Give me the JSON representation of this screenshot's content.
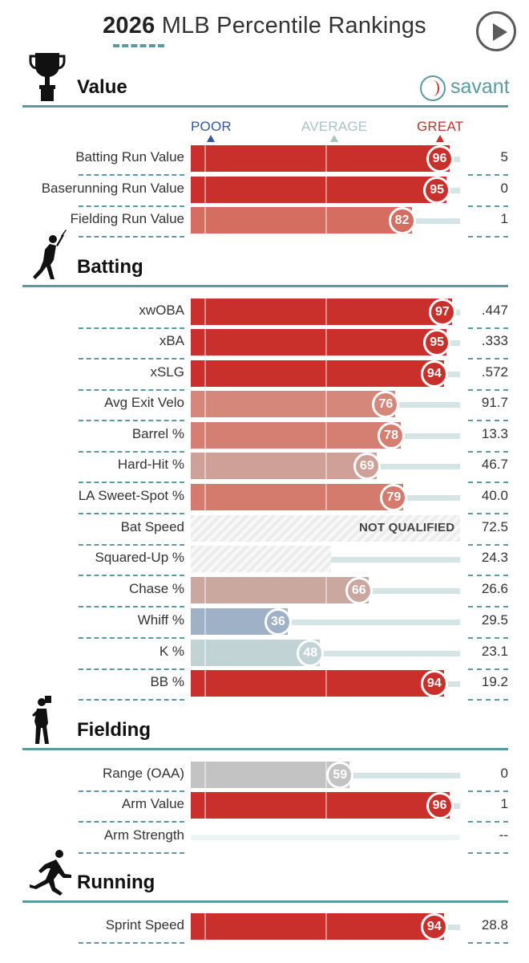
{
  "header": {
    "year": "2026",
    "title_rest": "MLB Percentile Rankings",
    "brand": "savant"
  },
  "axis": {
    "poor": "POOR",
    "average": "AVERAGE",
    "great": "GREAT"
  },
  "colors": {
    "accent": "#5a9aa0",
    "great": "#c9302c",
    "poor": "#3457a0"
  },
  "sections": [
    {
      "title": "Value",
      "icon": "trophy-icon",
      "rows": [
        {
          "label": "Batting Run Value",
          "percentile": 96,
          "value": "5",
          "color": "#c9302c"
        },
        {
          "label": "Baserunning Run Value",
          "percentile": 95,
          "value": "0",
          "color": "#c9302c"
        },
        {
          "label": "Fielding Run Value",
          "percentile": 82,
          "value": "1",
          "color": "#d36e60"
        }
      ]
    },
    {
      "title": "Batting",
      "icon": "batter-icon",
      "rows": [
        {
          "label": "xwOBA",
          "percentile": 97,
          "value": ".447",
          "color": "#c9302c"
        },
        {
          "label": "xBA",
          "percentile": 95,
          "value": ".333",
          "color": "#c9302c"
        },
        {
          "label": "xSLG",
          "percentile": 94,
          "value": ".572",
          "color": "#c9302c"
        },
        {
          "label": "Avg Exit Velo",
          "percentile": 76,
          "value": "91.7",
          "color": "#d5877a"
        },
        {
          "label": "Barrel %",
          "percentile": 78,
          "value": "13.3",
          "color": "#d47f71"
        },
        {
          "label": "Hard-Hit %",
          "percentile": 69,
          "value": "46.7",
          "color": "#cfa098"
        },
        {
          "label": "LA Sweet-Spot %",
          "percentile": 79,
          "value": "40.0",
          "color": "#d47b6d"
        },
        {
          "label": "Bat Speed",
          "percentile": null,
          "value": "72.5",
          "note": "NOT QUALIFIED",
          "hatch": 1.0
        },
        {
          "label": "Squared-Up %",
          "percentile": null,
          "value": "24.3",
          "hatch": 0.52
        },
        {
          "label": "Chase %",
          "percentile": 66,
          "value": "26.6",
          "color": "#caa79f"
        },
        {
          "label": "Whiff %",
          "percentile": 36,
          "value": "29.5",
          "color": "#9fb1c6"
        },
        {
          "label": "K %",
          "percentile": 48,
          "value": "23.1",
          "color": "#c2d3d5"
        },
        {
          "label": "BB %",
          "percentile": 94,
          "value": "19.2",
          "color": "#c9302c"
        }
      ]
    },
    {
      "title": "Fielding",
      "icon": "fielder-icon",
      "rows": [
        {
          "label": "Range (OAA)",
          "percentile": 59,
          "value": "0",
          "color": "#c3c3c3"
        },
        {
          "label": "Arm Value",
          "percentile": 96,
          "value": "1",
          "color": "#c9302c"
        },
        {
          "label": "Arm Strength",
          "percentile": null,
          "value": "--",
          "empty": true
        }
      ]
    },
    {
      "title": "Running",
      "icon": "runner-icon",
      "rows": [
        {
          "label": "Sprint Speed",
          "percentile": 94,
          "value": "28.8",
          "color": "#c9302c"
        }
      ]
    }
  ]
}
